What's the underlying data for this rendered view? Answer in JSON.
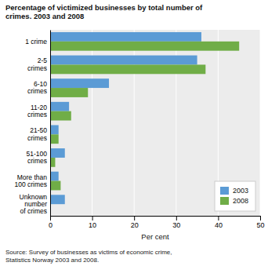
{
  "chart_data": {
    "type": "bar",
    "orientation": "horizontal",
    "title": "Percentage of victimized businesses by total number of\ncrimes. 2003 and 2008",
    "source": "Source: Survey of businesses as victims of economic crime,\nStatistics Norway 2003 and 2008.",
    "categories": [
      "1 crime",
      "2-5\ncrimes",
      "6-10\ncrimes",
      "11-20\ncrimes",
      "21-50\ncrimes",
      "51-100\ncrimes",
      "More than\n100 crimes",
      "Unknown\nnumber\nof crimes"
    ],
    "series": [
      {
        "name": "2003",
        "color": "#5b9bd5",
        "values": [
          36,
          35,
          14,
          4.5,
          2,
          3.5,
          2,
          3.5
        ]
      },
      {
        "name": "2008",
        "color": "#70ad47",
        "values": [
          45,
          37,
          9,
          5,
          2,
          1.2,
          2.5,
          0
        ]
      }
    ],
    "xlabel": "Per cent",
    "xlim": [
      0,
      50
    ],
    "xticks": [
      0,
      10,
      20,
      30,
      40,
      50
    ],
    "grid": true,
    "legend": "lower right"
  }
}
